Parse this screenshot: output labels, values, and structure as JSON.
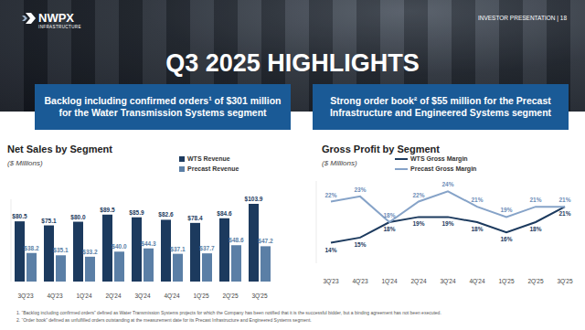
{
  "header": {
    "logo": "NWPX",
    "logo_subtitle": "INFRASTRUCTURE",
    "page_label": "INVESTOR PRESENTATION | 18",
    "title": "Q3 2025 HIGHLIGHTS"
  },
  "highlights": [
    "Backlog including confirmed orders¹ of $301 million for the Water Transmission Systems segment",
    "Strong order book² of $55 million for the Precast Infrastructure and Engineered Systems segment"
  ],
  "chart_data": [
    {
      "type": "bar",
      "title": "Net Sales by Segment",
      "subtitle": "($ Millions)",
      "categories": [
        "3Q'23",
        "4Q'23",
        "1Q'24",
        "2Q'24",
        "3Q'24",
        "4Q'24",
        "1Q'25",
        "2Q'25",
        "3Q'25"
      ],
      "series": [
        {
          "name": "WTS Revenue",
          "color": "#1c3a5e",
          "values": [
            80.5,
            75.1,
            80.0,
            89.5,
            85.9,
            82.6,
            78.4,
            84.6,
            103.9
          ],
          "value_labels": [
            "$80.5",
            "$75.1",
            "$80.0",
            "$89.5",
            "$85.9",
            "$82.6",
            "$78.4",
            "$84.6",
            "$103.9"
          ]
        },
        {
          "name": "Precast Revenue",
          "color": "#5b7fa6",
          "values": [
            38.2,
            35.1,
            33.2,
            40.0,
            44.3,
            37.1,
            37.7,
            48.6,
            47.2
          ],
          "value_labels": [
            "$38.2",
            "$35.1",
            "$33.2",
            "$40.0",
            "$44.3",
            "$37.1",
            "$37.7",
            "$48.6",
            "$47.2"
          ]
        }
      ],
      "ylim": [
        0,
        110
      ],
      "yticks": [],
      "grid": false,
      "legend": "top-right",
      "data_labels": true,
      "tick_labels": "x"
    },
    {
      "type": "line",
      "title": "Gross Profit by Segment",
      "subtitle": "($ Millions)",
      "categories": [
        "3Q'23",
        "4Q'23",
        "1Q'24",
        "2Q'24",
        "3Q'24",
        "4Q'24",
        "1Q'25",
        "2Q'25",
        "3Q'25"
      ],
      "series": [
        {
          "name": "WTS Gross Margin",
          "color": "#1c3a5e",
          "values": [
            14,
            15,
            18,
            19,
            19,
            18,
            16,
            18,
            21
          ],
          "value_labels": [
            "14%",
            "15%",
            "18%",
            "19%",
            "19%",
            "18%",
            "16%",
            "18%",
            "21%"
          ]
        },
        {
          "name": "Precast Gross Margin",
          "color": "#86a3c8",
          "values": [
            22,
            23,
            18,
            22,
            24,
            21,
            19,
            21,
            21
          ],
          "value_labels": [
            "22%",
            "23%",
            "18%",
            "22%",
            "24%",
            "21%",
            "19%",
            "21%",
            "21%"
          ]
        }
      ],
      "ylim": [
        10,
        26
      ],
      "yticks": [],
      "grid": false,
      "legend": "top-right",
      "data_labels": true,
      "tick_labels": "x"
    }
  ],
  "footnotes": [
    "1.  “Backlog including confirmed orders” defined as Water Transmission Systems projects for which the Company has been notified that it is the successful bidder, but a binding agreement has not been executed.",
    "2.  “Order book” defined as unfulfilled orders outstanding at the measurement date for its Precast Infrastructure and Engineered Systems segment."
  ]
}
